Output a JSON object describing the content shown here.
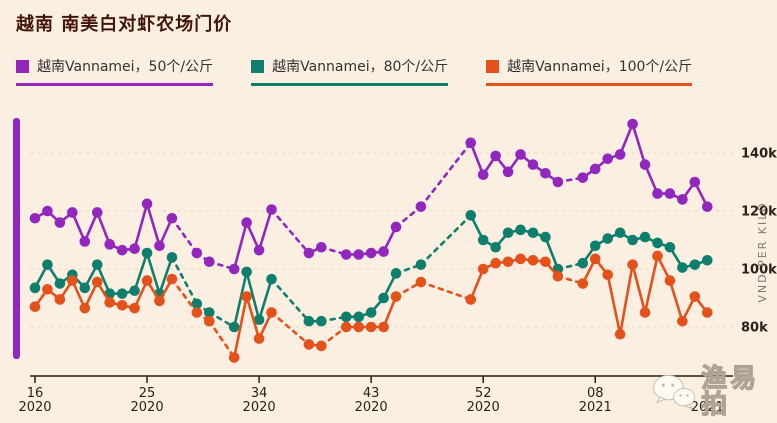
{
  "title": "越南 南美白对虾农场门价",
  "watermark": {
    "text": "渔易拍",
    "icon": "wechat-chat-bubbles"
  },
  "colors": {
    "background": "#FBEFE1",
    "series_50": "#9227BE",
    "series_80": "#0E7F6D",
    "series_100": "#E4511B",
    "grid": "#E8DAC8",
    "axis_line": "#2A1E14",
    "tick_text": "#2E2018",
    "y_axis_label": "#8A7663",
    "title_text": "#431508",
    "legend_text": "#333333",
    "accent_bar": "#9227BE"
  },
  "legend": {
    "items": [
      {
        "label": "越南Vannamei，50个/公斤"
      },
      {
        "label": "越南Vannamei，80个/公斤"
      },
      {
        "label": "越南Vannamei，100个/公斤"
      }
    ]
  },
  "chart_data": {
    "type": "line",
    "title": "越南 南美白对虾农场门价",
    "ylabel": "VND PER KILO",
    "values_unit": "thousand VND per kilo",
    "grid": "horizontal-dashed",
    "legend_position": "top",
    "ylim": [
      62,
      158
    ],
    "yticks": [
      {
        "value": 80,
        "label": "80k"
      },
      {
        "value": 100,
        "label": "100k"
      },
      {
        "value": 120,
        "label": "120k"
      },
      {
        "value": 140,
        "label": "140k"
      }
    ],
    "x_axis": {
      "unit": "week-of-year",
      "ticks": [
        {
          "pos": 0,
          "week": "16",
          "year": "2020"
        },
        {
          "pos": 9,
          "week": "25",
          "year": "2020"
        },
        {
          "pos": 18,
          "week": "34",
          "year": "2020"
        },
        {
          "pos": 27,
          "week": "43",
          "year": "2020"
        },
        {
          "pos": 36,
          "week": "52",
          "year": "2020"
        },
        {
          "pos": 45,
          "week": "08",
          "year": "2021"
        },
        {
          "pos": 54,
          "week": "",
          "year": "2021"
        }
      ]
    },
    "series": [
      {
        "name": "越南Vannamei，50个/公斤",
        "color": "#9227BE",
        "points": [
          [
            0,
            117.5
          ],
          [
            1,
            120
          ],
          [
            2,
            116
          ],
          [
            3,
            119.5
          ],
          [
            4,
            109.5
          ],
          [
            5,
            119.5
          ],
          [
            6,
            108.5
          ],
          [
            7,
            106.5
          ],
          [
            8,
            107
          ],
          [
            9,
            122.5
          ],
          [
            10,
            108
          ],
          [
            11,
            117.5
          ],
          [
            13,
            105.5
          ],
          [
            14,
            102.5
          ],
          [
            16,
            100
          ],
          [
            17,
            116
          ],
          [
            18,
            106.5
          ],
          [
            19,
            120.5
          ],
          [
            22,
            105.5
          ],
          [
            23,
            107.5
          ],
          [
            25,
            105
          ],
          [
            26,
            105
          ],
          [
            27,
            105.5
          ],
          [
            28,
            106
          ],
          [
            29,
            114.5
          ],
          [
            31,
            121.5
          ],
          [
            35,
            143.5
          ],
          [
            36,
            132.5
          ],
          [
            37,
            139
          ],
          [
            38,
            133.5
          ],
          [
            39,
            139.5
          ],
          [
            40,
            136
          ],
          [
            41,
            133
          ],
          [
            42,
            130
          ],
          [
            44,
            131.5
          ],
          [
            45,
            134.5
          ],
          [
            46,
            138
          ],
          [
            47,
            139.5
          ],
          [
            48,
            150
          ],
          [
            49,
            136
          ],
          [
            50,
            126
          ],
          [
            51,
            126
          ],
          [
            52,
            124
          ],
          [
            53,
            130
          ],
          [
            54,
            121.5
          ]
        ],
        "links": "sssssssssssdddsssdsdssssddsssssssdssssssssss"
      },
      {
        "name": "越南Vannamei，80个/公斤",
        "color": "#0E7F6D",
        "points": [
          [
            0,
            93.5
          ],
          [
            1,
            101.5
          ],
          [
            2,
            95
          ],
          [
            3,
            98
          ],
          [
            4,
            93.5
          ],
          [
            5,
            101.5
          ],
          [
            6,
            91.5
          ],
          [
            7,
            91.5
          ],
          [
            8,
            92.5
          ],
          [
            9,
            105.5
          ],
          [
            10,
            91.5
          ],
          [
            11,
            104
          ],
          [
            13,
            88
          ],
          [
            14,
            85
          ],
          [
            16,
            80
          ],
          [
            17,
            99
          ],
          [
            18,
            82.5
          ],
          [
            19,
            96.5
          ],
          [
            22,
            82
          ],
          [
            23,
            82
          ],
          [
            25,
            83.5
          ],
          [
            26,
            83.5
          ],
          [
            27,
            85
          ],
          [
            28,
            90
          ],
          [
            29,
            98.5
          ],
          [
            31,
            101.5
          ],
          [
            35,
            118.5
          ],
          [
            36,
            110
          ],
          [
            37,
            107.5
          ],
          [
            38,
            112.5
          ],
          [
            39,
            113.5
          ],
          [
            40,
            112.5
          ],
          [
            41,
            111
          ],
          [
            42,
            100
          ],
          [
            44,
            102
          ],
          [
            45,
            108
          ],
          [
            46,
            110.5
          ],
          [
            47,
            112.5
          ],
          [
            48,
            110
          ],
          [
            49,
            111
          ],
          [
            50,
            109
          ],
          [
            51,
            107.5
          ],
          [
            52,
            100.5
          ],
          [
            53,
            101.5
          ],
          [
            54,
            103
          ]
        ],
        "links": "sssssssssssdddsssdsdssssddsssssssdssssssssss"
      },
      {
        "name": "越南Vannamei，100个/公斤",
        "color": "#E4511B",
        "points": [
          [
            0,
            87
          ],
          [
            1,
            93
          ],
          [
            2,
            89.5
          ],
          [
            3,
            96
          ],
          [
            4,
            86.5
          ],
          [
            5,
            95.5
          ],
          [
            6,
            88.5
          ],
          [
            7,
            87.5
          ],
          [
            8,
            86.5
          ],
          [
            9,
            96
          ],
          [
            10,
            89
          ],
          [
            11,
            96.5
          ],
          [
            13,
            85
          ],
          [
            14,
            82
          ],
          [
            16,
            69.5
          ],
          [
            17,
            90.5
          ],
          [
            18,
            76
          ],
          [
            19,
            85
          ],
          [
            22,
            74
          ],
          [
            23,
            73.5
          ],
          [
            25,
            80
          ],
          [
            26,
            80
          ],
          [
            27,
            80
          ],
          [
            28,
            80
          ],
          [
            29,
            90.5
          ],
          [
            31,
            95.5
          ],
          [
            35,
            89.5
          ],
          [
            36,
            100
          ],
          [
            37,
            102
          ],
          [
            38,
            102.5
          ],
          [
            39,
            103.5
          ],
          [
            40,
            103
          ],
          [
            41,
            102.5
          ],
          [
            42,
            97.5
          ],
          [
            44,
            95
          ],
          [
            45,
            103.5
          ],
          [
            46,
            98
          ],
          [
            47,
            77.5
          ],
          [
            48,
            101.5
          ],
          [
            49,
            85
          ],
          [
            50,
            104.5
          ],
          [
            51,
            96
          ],
          [
            52,
            82
          ],
          [
            53,
            90.5
          ],
          [
            54,
            85
          ]
        ],
        "links": "sssssssssssdddsssdsdssssddsssssssdssssssssss"
      }
    ]
  }
}
